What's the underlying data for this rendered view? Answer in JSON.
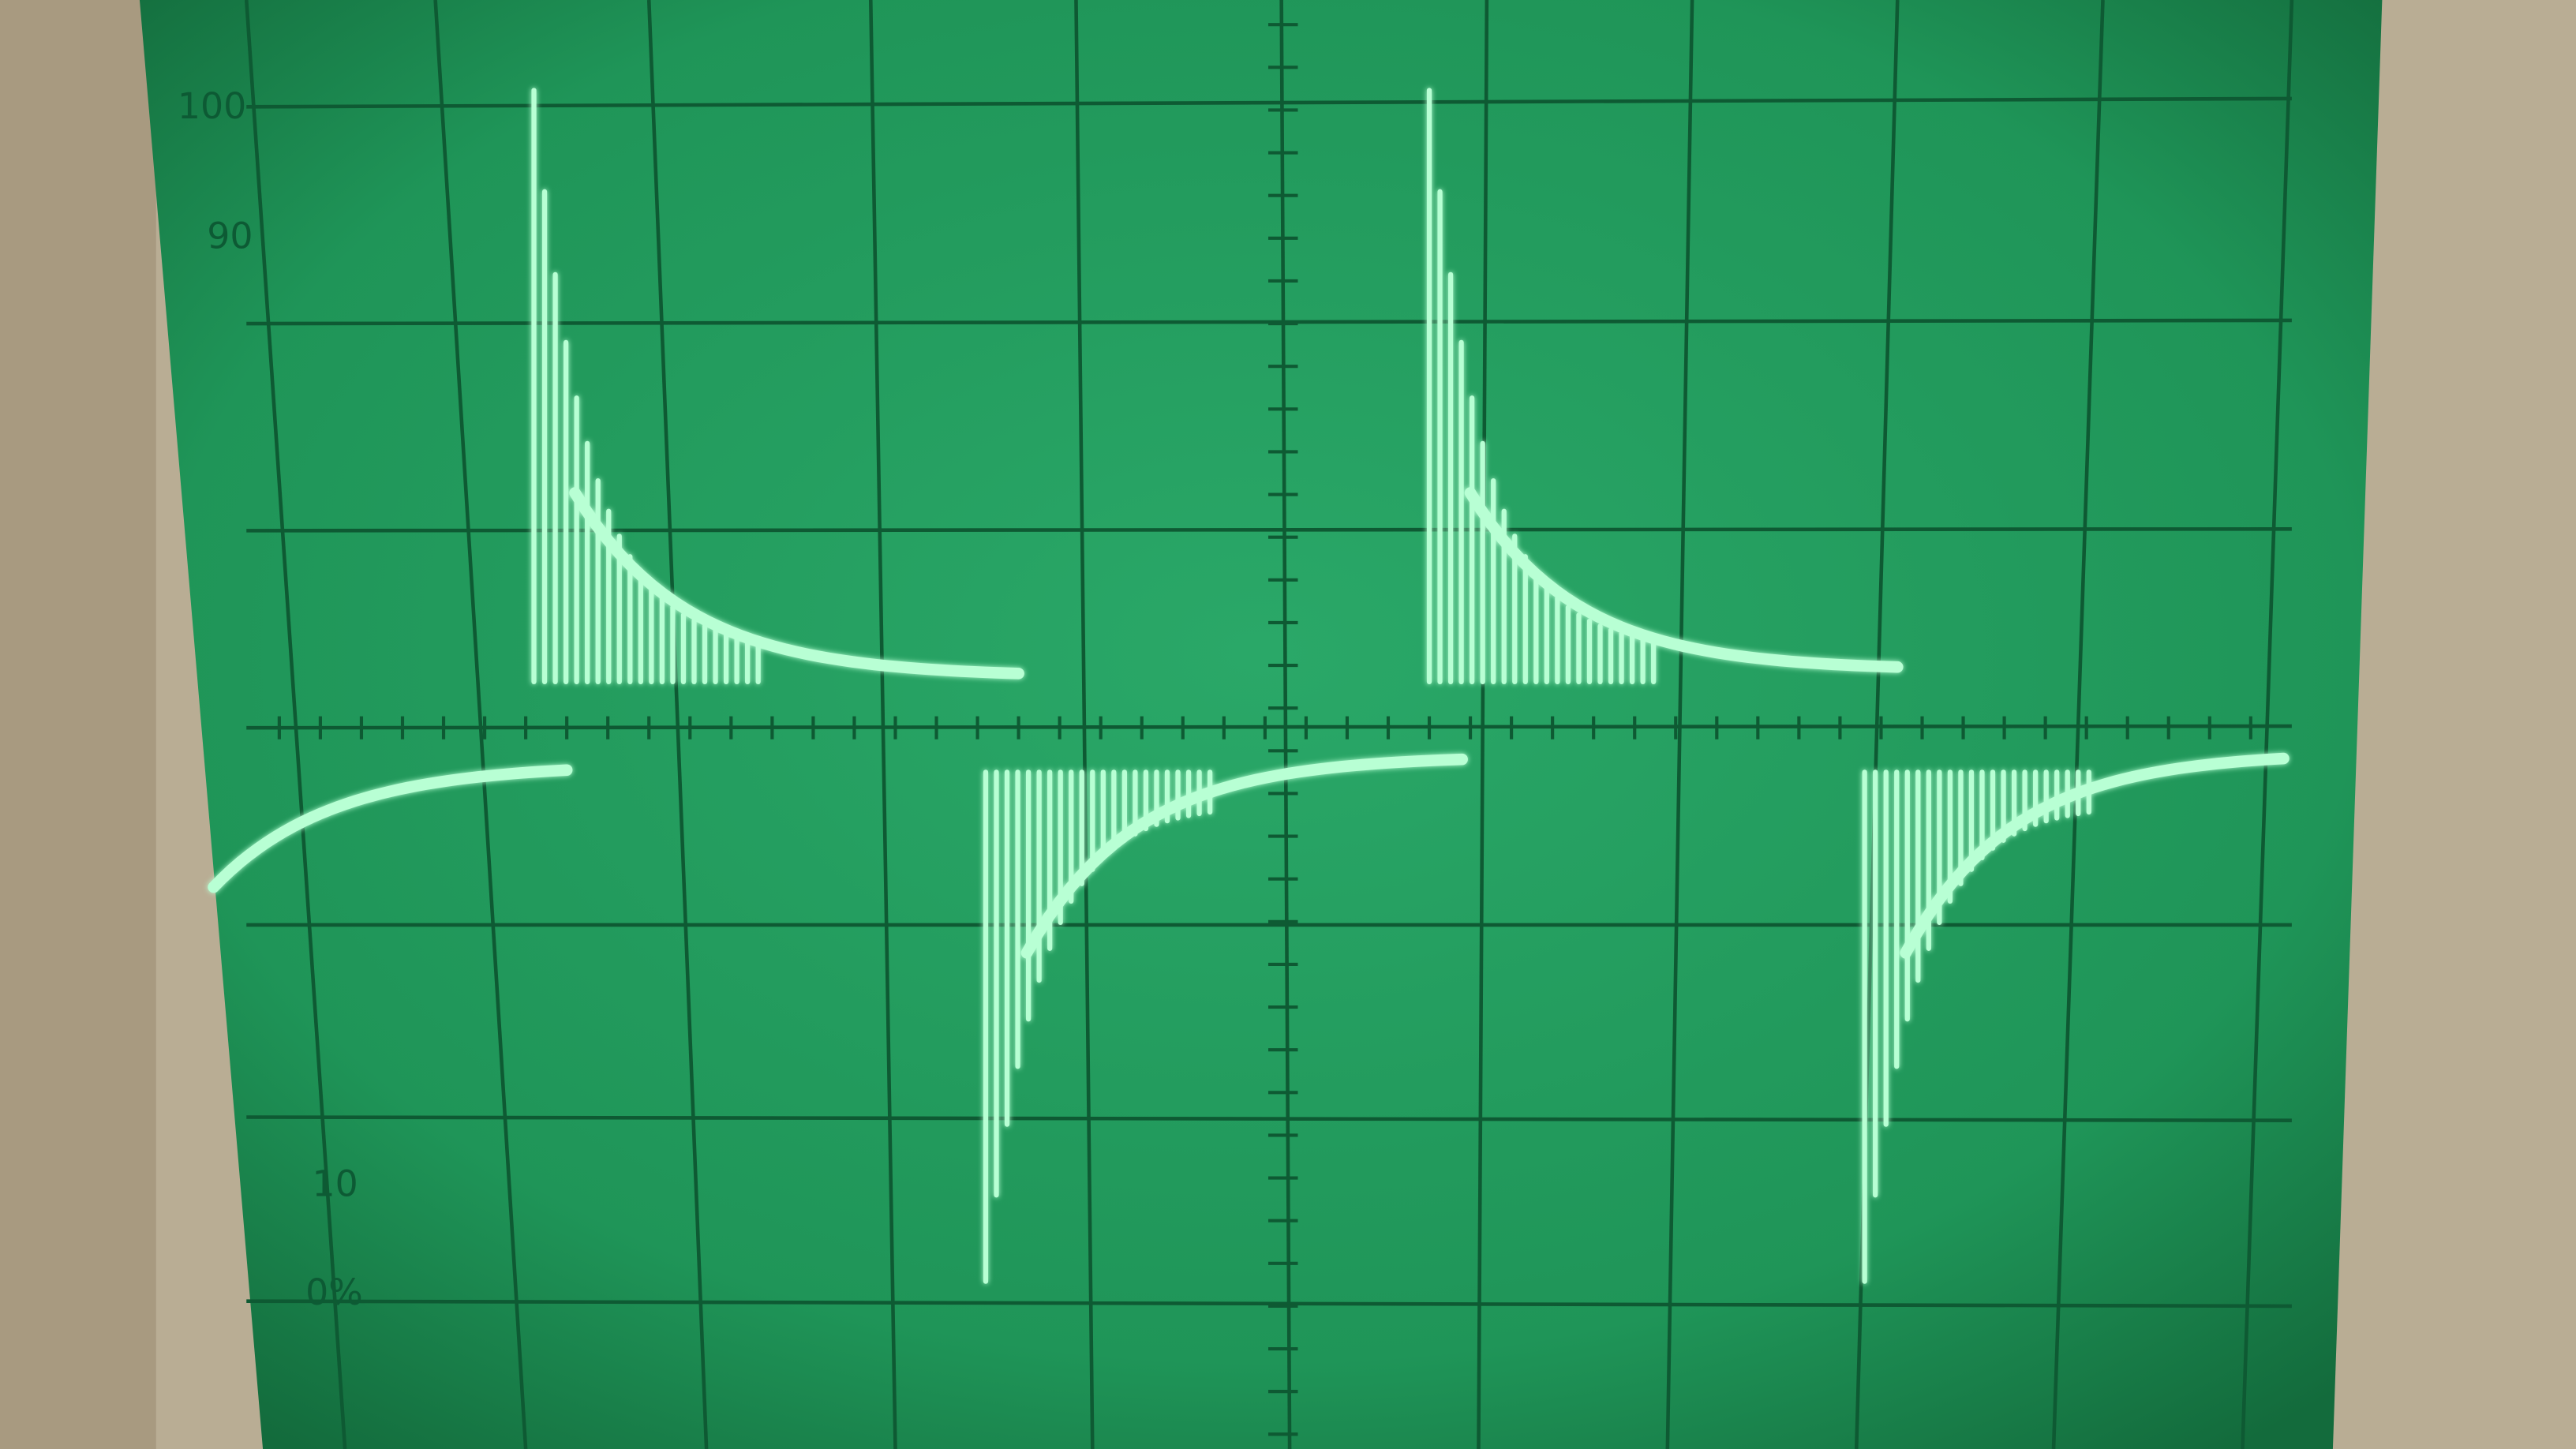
{
  "graticule_labels": [
    "100",
    "90",
    "10",
    "0%"
  ]
}
